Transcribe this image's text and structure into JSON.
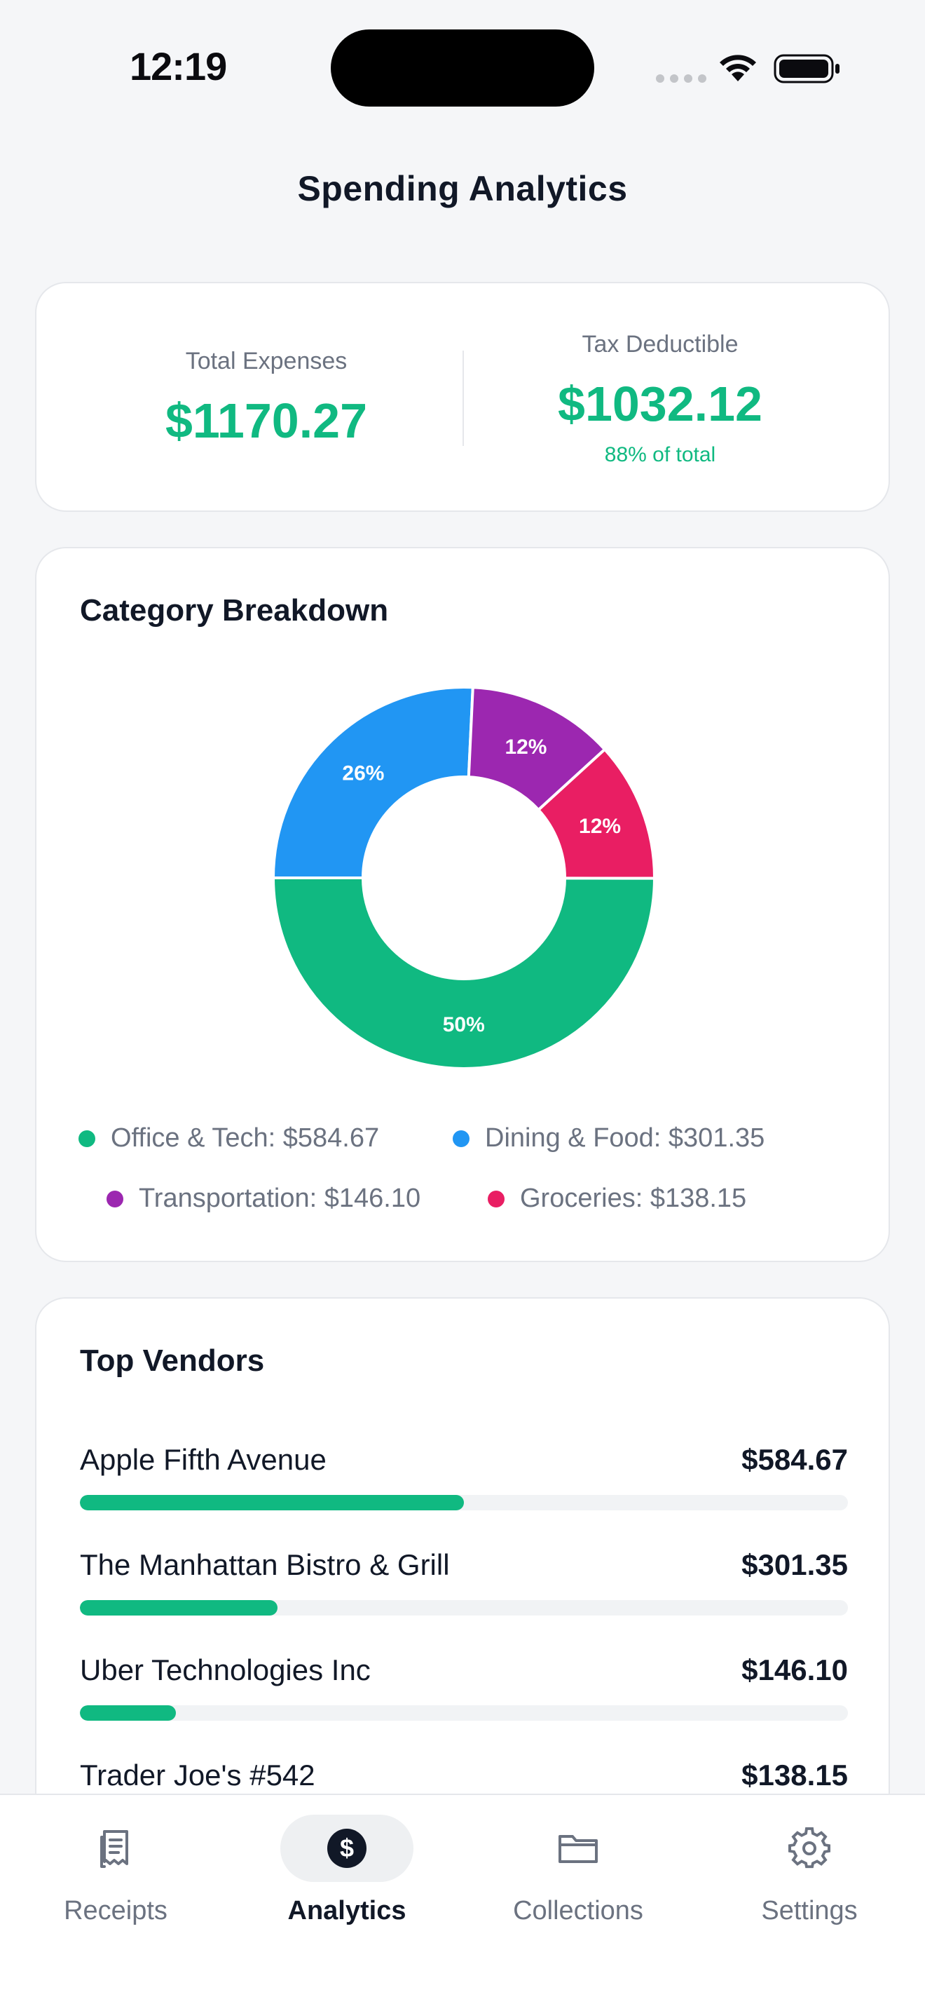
{
  "status_bar": {
    "time": "12:19"
  },
  "header": {
    "title": "Spending Analytics"
  },
  "summary": {
    "total_label": "Total Expenses",
    "total_value": "$1170.27",
    "deductible_label": "Tax Deductible",
    "deductible_value": "$1032.12",
    "deductible_sub": "88% of total"
  },
  "breakdown": {
    "title": "Category Breakdown",
    "legend": [
      {
        "text": "Office & Tech: $584.67",
        "color": "#10b981"
      },
      {
        "text": "Dining & Food: $301.35",
        "color": "#2196f3"
      },
      {
        "text": "Transportation: $146.10",
        "color": "#9c27b0"
      },
      {
        "text": "Groceries: $138.15",
        "color": "#e91e63"
      }
    ]
  },
  "chart_data": {
    "type": "pie",
    "categories": [
      "Office & Tech",
      "Dining & Food",
      "Transportation",
      "Groceries"
    ],
    "values": [
      584.67,
      301.35,
      146.1,
      138.15
    ],
    "labels": [
      "50%",
      "26%",
      "12%",
      "12%"
    ],
    "colors": [
      "#10b981",
      "#2196f3",
      "#9c27b0",
      "#e91e63"
    ],
    "donut": true
  },
  "vendors": {
    "title": "Top Vendors",
    "items": [
      {
        "name": "Apple Fifth Avenue",
        "amount": "$584.67",
        "fraction": 0.5
      },
      {
        "name": "The Manhattan Bistro & Grill",
        "amount": "$301.35",
        "fraction": 0.257
      },
      {
        "name": "Uber Technologies Inc",
        "amount": "$146.10",
        "fraction": 0.125
      },
      {
        "name": "Trader Joe's #542",
        "amount": "$138.15",
        "fraction": 0.118
      }
    ]
  },
  "tabs": [
    {
      "label": "Receipts",
      "icon": "receipt-icon",
      "active": false
    },
    {
      "label": "Analytics",
      "icon": "dollar-circle-icon",
      "active": true
    },
    {
      "label": "Collections",
      "icon": "folder-icon",
      "active": false
    },
    {
      "label": "Settings",
      "icon": "gear-icon",
      "active": false
    }
  ]
}
